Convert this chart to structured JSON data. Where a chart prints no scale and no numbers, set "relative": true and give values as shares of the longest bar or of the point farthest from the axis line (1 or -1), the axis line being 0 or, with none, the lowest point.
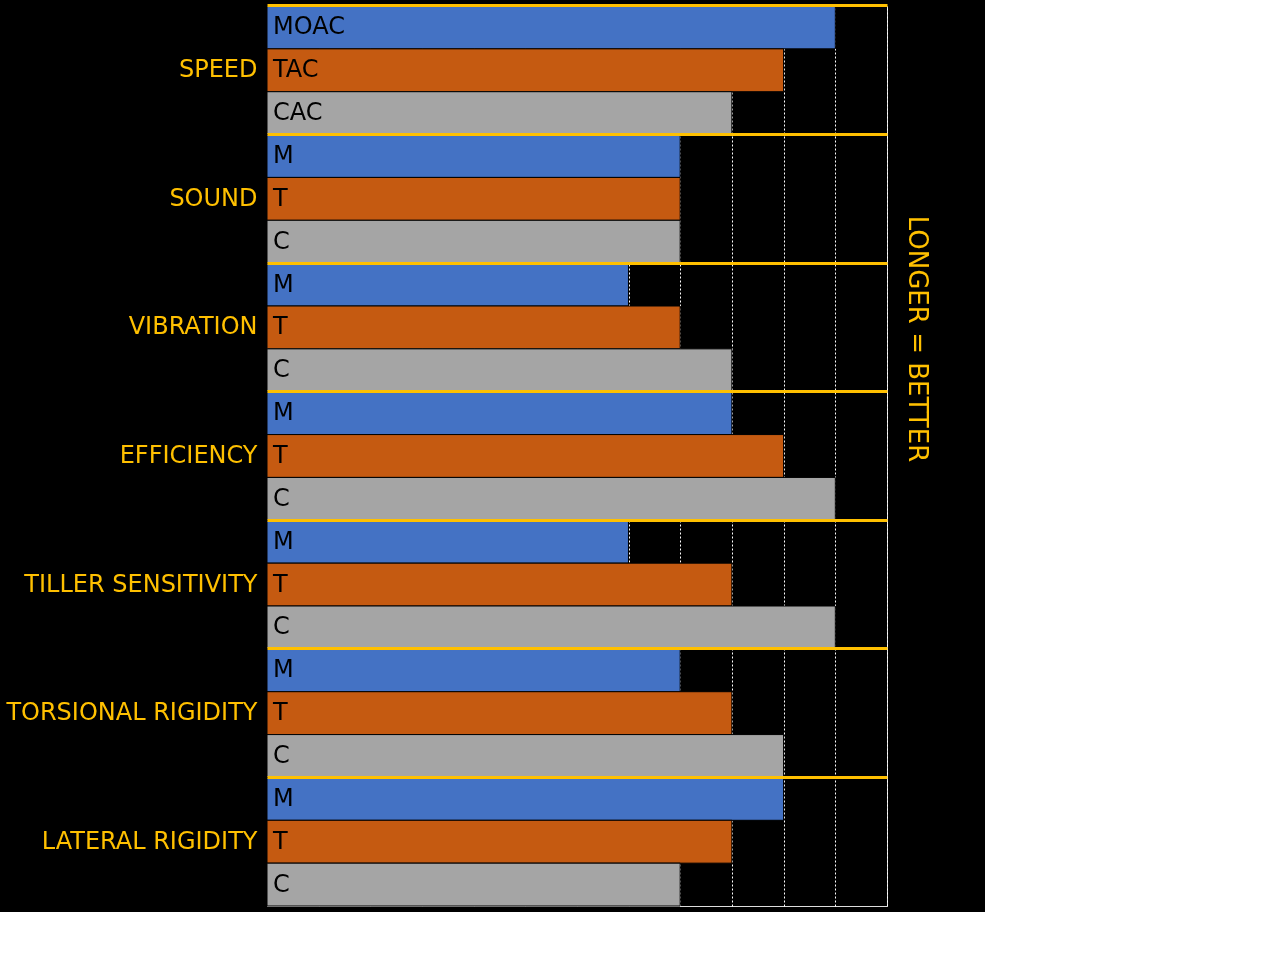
{
  "chart_data": {
    "type": "bar",
    "orientation": "horizontal",
    "relative": true,
    "grid": "x",
    "legend": false,
    "y2label": "LONGER = BETTER",
    "categories": [
      "SPEED",
      "SOUND",
      "VIBRATION",
      "EFFICIENCY",
      "TILLER SENSITIVITY",
      "TORSIONAL RIGIDITY",
      "LATERAL RIGIDITY"
    ],
    "series": [
      {
        "name": "MOAC",
        "color": "#4472c4",
        "values": [
          1,
          0.727,
          0.636,
          0.818,
          0.636,
          0.727,
          0.909
        ]
      },
      {
        "name": "TAC",
        "color": "#c55a11",
        "values": [
          0.909,
          0.727,
          0.727,
          0.909,
          0.818,
          0.818,
          0.818
        ]
      },
      {
        "name": "CAC",
        "color": "#a5a5a5",
        "values": [
          0.818,
          0.727,
          0.818,
          1,
          1,
          0.909,
          0.727
        ]
      }
    ],
    "annotations": [
      "M",
      "T",
      "C",
      "M",
      "T",
      "C",
      "M",
      "T",
      "C",
      "M",
      "T",
      "C",
      "M",
      "T",
      "C",
      "M",
      "T",
      "C"
    ]
  }
}
